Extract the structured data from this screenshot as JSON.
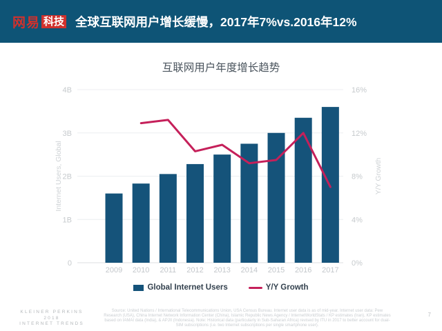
{
  "header": {
    "logo": {
      "brand_text": "网易",
      "badge_text": "科技",
      "red": "#D0312D"
    },
    "title": "全球互联网用户增长缓慢，2017年7%vs.2016年12%",
    "background": "#0E5476"
  },
  "chart_data": {
    "type": "bar",
    "title": "互联网用户年度增长趋势",
    "categories": [
      "2009",
      "2010",
      "2011",
      "2012",
      "2013",
      "2014",
      "2015",
      "2016",
      "2017"
    ],
    "series": [
      {
        "name": "Global Internet Users",
        "type": "bar",
        "axis": "left",
        "unit": "B",
        "color": "#15537A",
        "values": [
          1.6,
          1.83,
          2.05,
          2.28,
          2.5,
          2.75,
          3.0,
          3.35,
          3.6
        ]
      },
      {
        "name": "Y/Y Growth",
        "type": "line",
        "axis": "right",
        "unit": "%",
        "color": "#C5205A",
        "values": [
          null,
          12.9,
          13.2,
          10.3,
          10.9,
          9.2,
          9.5,
          12.0,
          7.0
        ]
      }
    ],
    "left_axis": {
      "label": "Internet Users, Global",
      "min": 0,
      "max": 4,
      "ticks": [
        "0",
        "1B",
        "2B",
        "3B",
        "4B"
      ]
    },
    "right_axis": {
      "label": "Y/Y Growth",
      "min": 0,
      "max": 16,
      "ticks": [
        "0%",
        "4%",
        "8%",
        "12%",
        "16%"
      ]
    },
    "grid": true,
    "legend_position": "bottom"
  },
  "footer": {
    "brand_line1": "KLEINER PERKINS",
    "brand_line2": "2018",
    "brand_line3": "INTERNET TRENDS",
    "source_text": "Source: United Nations / International Telecommunications Union, USA Census Bureau. Internet user data is as of mid-year. Internet user data: Pew Research (USA), China Internet Network Information Center (China), Islamic Republic News Agency / InternetWorldStats / KP estimates (Iran), KP estimates based on IAMAI data (India), & APJII (Indonesia). Note: Historical data (particularly in Sub-Saharan Africa) revised by ITU in 2017 to better account for dual-SIM subscriptions (i.e. two Internet subscriptions per single smartphone user).",
    "page_number": "7"
  }
}
